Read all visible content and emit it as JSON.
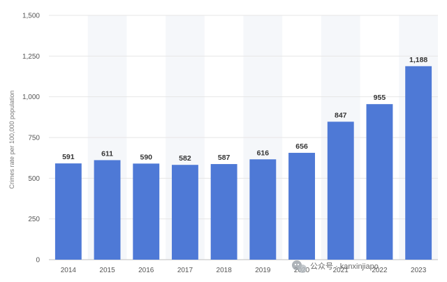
{
  "chart_data": {
    "type": "bar",
    "categories": [
      "2014",
      "2015",
      "2016",
      "2017",
      "2018",
      "2019",
      "2020",
      "2021",
      "2022",
      "2023"
    ],
    "values": [
      591,
      611,
      590,
      582,
      587,
      616,
      656,
      847,
      955,
      1188
    ],
    "data_labels": [
      "591",
      "611",
      "590",
      "582",
      "587",
      "616",
      "656",
      "847",
      "955",
      "1,188"
    ],
    "ylabel": "Crimes rate per 100,000 population",
    "xlabel": "",
    "ylim": [
      0,
      1500
    ],
    "yticks": [
      0,
      250,
      500,
      750,
      1000,
      1250,
      1500
    ],
    "ytick_labels": [
      "0",
      "250",
      "500",
      "750",
      "1,000",
      "1,250",
      "1,500"
    ],
    "bar_color": "#4e79d6",
    "grid": true
  },
  "watermark": {
    "text": "公众号 · kanxinjiapo",
    "icon": "wechat-icon"
  }
}
